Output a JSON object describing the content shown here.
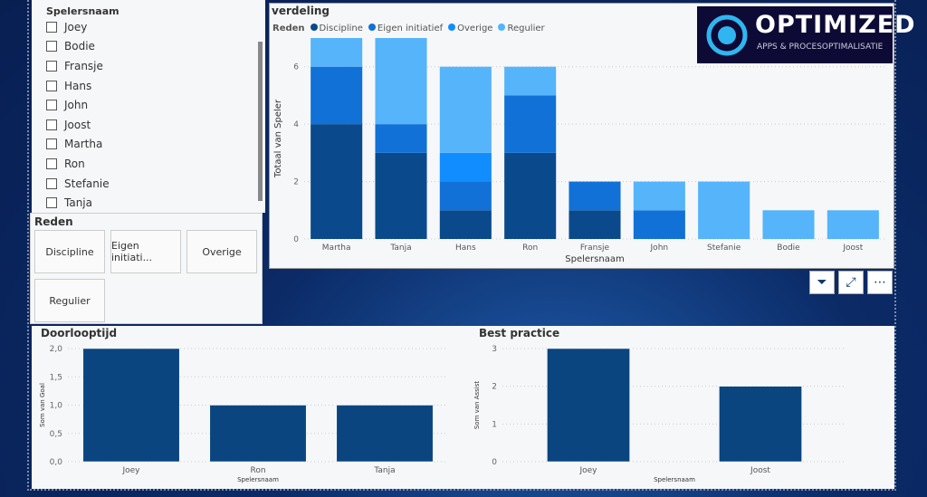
{
  "slicer": {
    "title": "Spelersnaam",
    "items": [
      "Joey",
      "Bodie",
      "Fransje",
      "Hans",
      "John",
      "Joost",
      "Martha",
      "Ron",
      "Stefanie",
      "Tanja"
    ]
  },
  "reden": {
    "title": "Reden",
    "buttons": [
      "Discipline",
      "Eigen initiati...",
      "Overige",
      "Regulier"
    ]
  },
  "logo": {
    "name": "OPTIMIZED",
    "tagline": "APPS & PROCESOPTIMALISATIE"
  },
  "toolbar": {
    "filter": "filter-icon",
    "focus": "focus-mode-icon",
    "more": "more-options-icon"
  },
  "chart_data": [
    {
      "type": "bar",
      "stacked": true,
      "title": "verdeling",
      "legend_title": "Reden",
      "legend_placement": "top-left",
      "xlabel": "Spelersnaam",
      "ylabel": "Totaal van Speler",
      "ylim": [
        0,
        7
      ],
      "yticks": [
        "0",
        "2",
        "4",
        "6"
      ],
      "categories": [
        "Martha",
        "Tanja",
        "Hans",
        "Ron",
        "Fransje",
        "John",
        "Stefanie",
        "Bodie",
        "Joost"
      ],
      "series": [
        {
          "name": "Discipline",
          "color": "#0a4a8c",
          "values": [
            4,
            3,
            1,
            3,
            1,
            0,
            0,
            0,
            0
          ]
        },
        {
          "name": "Eigen initiatief",
          "color": "#1171d6",
          "values": [
            2,
            1,
            1,
            2,
            1,
            1,
            0,
            0,
            0
          ]
        },
        {
          "name": "Overige",
          "color": "#118dff",
          "values": [
            0,
            0,
            1,
            0,
            0,
            0,
            0,
            0,
            0
          ]
        },
        {
          "name": "Regulier",
          "color": "#55b4fa",
          "values": [
            1,
            3,
            3,
            1,
            0,
            1,
            2,
            1,
            1
          ]
        }
      ]
    },
    {
      "type": "bar",
      "title": "Doorlooptijd",
      "xlabel": "Spelersnaam",
      "ylabel": "Som van Goal",
      "ylim": [
        0,
        2
      ],
      "yticks": [
        "0,0",
        "0,5",
        "1,0",
        "1,5",
        "2,0"
      ],
      "categories": [
        "Joey",
        "Ron",
        "Tanja"
      ],
      "values": [
        2,
        1,
        1
      ],
      "color": "#0a4580"
    },
    {
      "type": "bar",
      "title": "Best practice",
      "xlabel": "Spelersnaam",
      "ylabel": "Som van Assist",
      "ylim": [
        0,
        3
      ],
      "yticks": [
        "0",
        "1",
        "2",
        "3"
      ],
      "categories": [
        "Joey",
        "Joost"
      ],
      "values": [
        3,
        2
      ],
      "color": "#0a4580"
    }
  ]
}
